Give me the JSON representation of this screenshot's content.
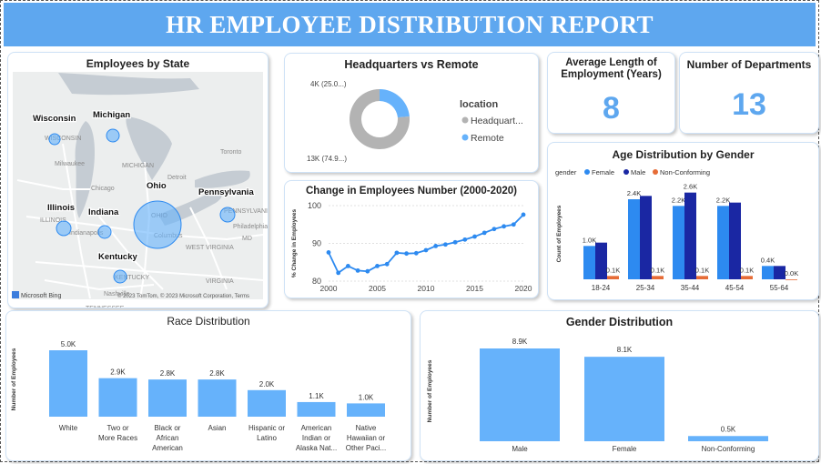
{
  "header": {
    "title": "HR EMPLOYEE DISTRIBUTION REPORT"
  },
  "colors": {
    "banner": "#5ea7ef",
    "bar": "#66b2fb",
    "female": "#2d8af0",
    "male": "#1a27a3",
    "nonconforming": "#e66c37",
    "line": "#2d8af0",
    "donut_gray": "#b3b3b3",
    "kpi": "#5ea7ef"
  },
  "map": {
    "title": "Employees by State",
    "credit": "© 2023 TomTom, © 2023 Microsoft Corporation, Terms",
    "logo": "Microsoft Bing",
    "states": [
      {
        "label": "Wisconsin",
        "size": "small"
      },
      {
        "label": "Michigan",
        "size": "small"
      },
      {
        "label": "Ohio",
        "size": "large"
      },
      {
        "label": "Pennsylvania",
        "size": "small"
      },
      {
        "label": "Illinois",
        "size": "small"
      },
      {
        "label": "Indiana",
        "size": "small"
      },
      {
        "label": "Kentucky",
        "size": "small"
      }
    ],
    "basemap_labels": [
      "WISCONSIN",
      "Milwaukee",
      "MICHIGAN",
      "Chicago",
      "Toronto",
      "Detroit",
      "OHIO",
      "PENNSYLVANIA",
      "ILLINOIS",
      "Indianapolis",
      "Columbus",
      "Philadelphia",
      "WEST VIRGINIA",
      "KENTUCKY",
      "VIRGINIA",
      "Nashville",
      "TENNESSEE",
      "MD"
    ]
  },
  "kpis": {
    "tenure": {
      "title": "Average Length of Employment (Years)",
      "value": "8"
    },
    "departments": {
      "title": "Number of Departments",
      "value": "13"
    }
  },
  "chart_data": [
    {
      "id": "hq_remote",
      "type": "pie",
      "title": "Headquarters vs Remote",
      "legend_title": "location",
      "legend_position": "right",
      "series": [
        {
          "name": "Headquart...",
          "value": 13,
          "label": "13K (74.9...)",
          "color": "#b3b3b3"
        },
        {
          "name": "Remote",
          "value": 4,
          "label": "4K (25.0...)",
          "color": "#66b2fb"
        }
      ],
      "shares": [
        74.9,
        25.0
      ]
    },
    {
      "id": "employees_change",
      "type": "line",
      "title": "Change in Employees Number (2000-2020)",
      "ylabel": "% Change in Employees",
      "xlabel": "",
      "xlim": [
        2000,
        2020
      ],
      "ylim": [
        80,
        100
      ],
      "x_ticks": [
        2000,
        2005,
        2010,
        2015,
        2020
      ],
      "y_ticks": [
        80,
        90,
        100
      ],
      "x": [
        2000,
        2001,
        2002,
        2003,
        2004,
        2005,
        2006,
        2007,
        2008,
        2009,
        2010,
        2011,
        2012,
        2013,
        2014,
        2015,
        2016,
        2017,
        2018,
        2019,
        2020
      ],
      "y": [
        87.6,
        82.2,
        84.0,
        82.8,
        82.6,
        84.0,
        84.5,
        87.5,
        87.3,
        87.4,
        88.2,
        89.3,
        89.7,
        90.3,
        91.0,
        91.8,
        92.8,
        93.8,
        94.5,
        95.0,
        97.6
      ]
    },
    {
      "id": "age_gender",
      "type": "bar",
      "title": "Age Distribution by Gender",
      "legend_title": "gender",
      "legend_position": "top-left",
      "ylabel": "Count of Employees",
      "categories": [
        "18-24",
        "25-34",
        "35-44",
        "45-54",
        "55-64"
      ],
      "series": [
        {
          "name": "Female",
          "values": [
            1.0,
            2.4,
            2.2,
            2.2,
            0.4
          ],
          "labels": [
            "1.0K",
            "2.4K",
            "2.2K",
            "2.2K",
            "0.4K"
          ]
        },
        {
          "name": "Male",
          "values": [
            1.1,
            2.5,
            2.6,
            2.3,
            0.4
          ],
          "labels": [
            "",
            "",
            "2.6K",
            "",
            ""
          ]
        },
        {
          "name": "Non-Conforming",
          "values": [
            0.1,
            0.1,
            0.1,
            0.1,
            0.0
          ],
          "labels": [
            "0.1K",
            "0.1K",
            "0.1K",
            "0.1K",
            "0.0K"
          ]
        }
      ],
      "ylim": [
        0,
        3.0
      ]
    },
    {
      "id": "race",
      "type": "bar",
      "title": "Race Distribution",
      "ylabel": "Number of Employees",
      "categories": [
        [
          "White"
        ],
        [
          "Two or",
          "More Races"
        ],
        [
          "Black or",
          "African",
          "American"
        ],
        [
          "Asian"
        ],
        [
          "Hispanic or",
          "Latino"
        ],
        [
          "American",
          "Indian or",
          "Alaska Nat..."
        ],
        [
          "Native",
          "Hawaiian or",
          "Other Paci..."
        ]
      ],
      "values": [
        5.0,
        2.9,
        2.8,
        2.8,
        2.0,
        1.1,
        1.0
      ],
      "labels": [
        "5.0K",
        "2.9K",
        "2.8K",
        "2.8K",
        "2.0K",
        "1.1K",
        "1.0K"
      ],
      "ylim": [
        0,
        5.0
      ]
    },
    {
      "id": "gender",
      "type": "bar",
      "title": "Gender Distribution",
      "ylabel": "Number of Employees",
      "categories": [
        "Male",
        "Female",
        "Non-Conforming"
      ],
      "values": [
        8.9,
        8.1,
        0.5
      ],
      "labels": [
        "8.9K",
        "8.1K",
        "0.5K"
      ],
      "ylim": [
        0,
        8.9
      ]
    }
  ]
}
